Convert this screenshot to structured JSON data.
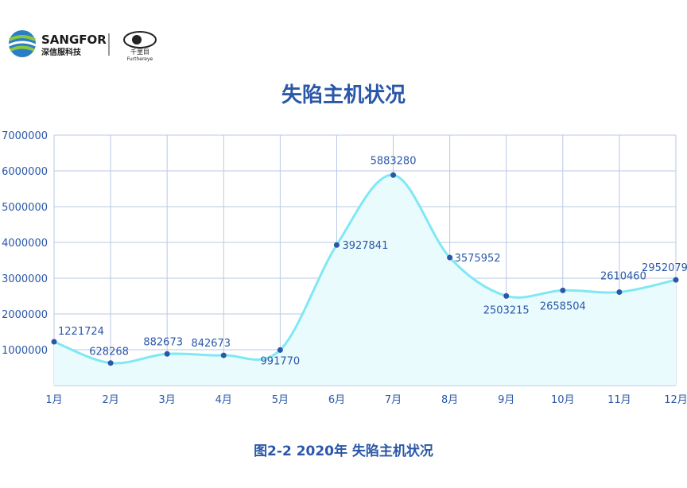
{
  "header": {
    "brand": "SANGFOR",
    "brand_cn": "深信服科技",
    "sub_brand": "千里目",
    "sub_brand_en": "Furthereye"
  },
  "caption": "图2-2  2020年 失陷主机状况",
  "chart_data": {
    "type": "line",
    "title": "失陷主机状况",
    "categories": [
      "1月",
      "2月",
      "3月",
      "4月",
      "5月",
      "6月",
      "7月",
      "8月",
      "9月",
      "10月",
      "11月",
      "12月"
    ],
    "values": [
      1221724,
      628268,
      882673,
      842673,
      991770,
      3927841,
      5883280,
      3575952,
      2503215,
      2658504,
      2610460,
      2952079
    ],
    "color": "#7fe8f5",
    "marker_color": "#2a57a8",
    "area_color": "#eafbfd",
    "ylim": [
      0,
      7000000
    ],
    "yticks": [
      1000000,
      2000000,
      3000000,
      4000000,
      5000000,
      6000000,
      7000000
    ],
    "grid": true,
    "smooth": true
  }
}
